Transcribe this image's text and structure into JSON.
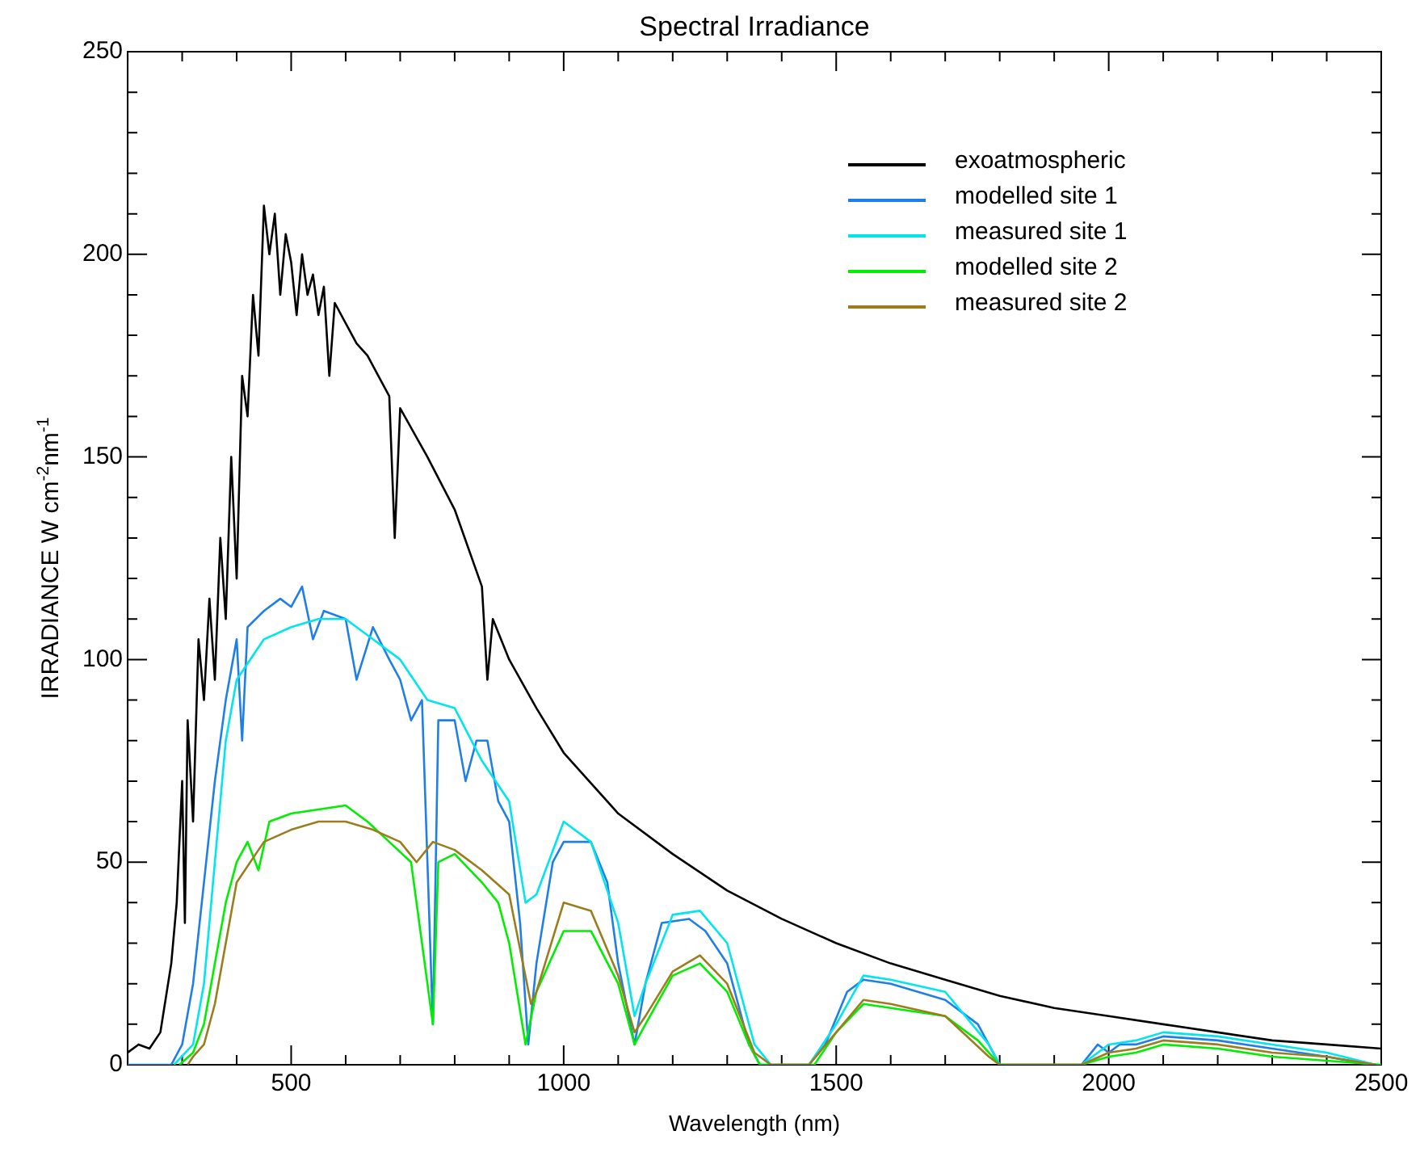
{
  "chart_data": {
    "type": "line",
    "title": "Spectral Irradiance",
    "xlabel": "Wavelength (nm)",
    "ylabel": "IRRADIANCE W cm$^{-2}$nm$^{-1}$",
    "xlim": [
      200,
      2500
    ],
    "ylim": [
      0,
      250
    ],
    "xticks": [
      {
        "value": 200,
        "label": null
      },
      {
        "value": 300,
        "label": null
      },
      {
        "value": 400,
        "label": null
      },
      500,
      {
        "value": 600,
        "label": null
      },
      {
        "value": 700,
        "label": null
      },
      {
        "value": 800,
        "label": null
      },
      {
        "value": 900,
        "label": null
      },
      1000,
      {
        "value": 1100,
        "label": null
      },
      {
        "value": 1200,
        "label": null
      },
      {
        "value": 1300,
        "label": null
      },
      {
        "value": 1400,
        "label": null
      },
      1500,
      {
        "value": 1600,
        "label": null
      },
      {
        "value": 1700,
        "label": null
      },
      {
        "value": 1800,
        "label": null
      },
      {
        "value": 1900,
        "label": null
      },
      2000,
      {
        "value": 2100,
        "label": null
      },
      {
        "value": 2200,
        "label": null
      },
      {
        "value": 2300,
        "label": null
      },
      {
        "value": 2400,
        "label": null
      },
      2500
    ],
    "yticks": [
      0,
      {
        "value": 10,
        "label": null
      },
      {
        "value": 20,
        "label": null
      },
      {
        "value": 30,
        "label": null
      },
      {
        "value": 40,
        "label": null
      },
      50,
      {
        "value": 60,
        "label": null
      },
      {
        "value": 70,
        "label": null
      },
      {
        "value": 80,
        "label": null
      },
      {
        "value": 90,
        "label": null
      },
      100,
      {
        "value": 110,
        "label": null
      },
      {
        "value": 120,
        "label": null
      },
      {
        "value": 130,
        "label": null
      },
      {
        "value": 140,
        "label": null
      },
      150,
      {
        "value": 160,
        "label": null
      },
      {
        "value": 170,
        "label": null
      },
      {
        "value": 180,
        "label": null
      },
      {
        "value": 190,
        "label": null
      },
      200,
      {
        "value": 210,
        "label": null
      },
      {
        "value": 220,
        "label": null
      },
      {
        "value": 230,
        "label": null
      },
      {
        "value": 240,
        "label": null
      },
      250
    ],
    "grid": false,
    "legend": "top right",
    "marker": "none",
    "line_style": "solid",
    "series": [
      {
        "name": "exoatmospheric",
        "color": "#000000",
        "x": [
          200,
          220,
          240,
          260,
          280,
          290,
          300,
          305,
          310,
          320,
          330,
          340,
          350,
          360,
          370,
          380,
          390,
          400,
          410,
          420,
          430,
          440,
          450,
          460,
          470,
          480,
          490,
          500,
          510,
          520,
          530,
          540,
          550,
          560,
          570,
          580,
          600,
          620,
          640,
          660,
          680,
          690,
          700,
          750,
          800,
          850,
          860,
          870,
          900,
          950,
          1000,
          1100,
          1200,
          1300,
          1400,
          1500,
          1600,
          1700,
          1800,
          1900,
          2000,
          2100,
          2200,
          2300,
          2400,
          2500
        ],
        "values": [
          3,
          5,
          4,
          8,
          25,
          40,
          70,
          35,
          85,
          60,
          105,
          90,
          115,
          95,
          130,
          110,
          150,
          120,
          170,
          160,
          190,
          175,
          212,
          200,
          210,
          190,
          205,
          198,
          185,
          200,
          190,
          195,
          185,
          192,
          170,
          188,
          183,
          178,
          175,
          170,
          165,
          130,
          162,
          150,
          137,
          118,
          95,
          110,
          100,
          88,
          77,
          62,
          52,
          43,
          36,
          30,
          25,
          21,
          17,
          14,
          12,
          10,
          8,
          6,
          5,
          4
        ]
      },
      {
        "name": "modelled site 1",
        "color": "#1e7fe8",
        "x": [
          200,
          280,
          300,
          320,
          340,
          360,
          380,
          400,
          410,
          420,
          450,
          480,
          500,
          520,
          540,
          560,
          600,
          620,
          650,
          680,
          700,
          720,
          740,
          760,
          770,
          800,
          820,
          840,
          860,
          880,
          900,
          920,
          935,
          950,
          980,
          1000,
          1050,
          1080,
          1100,
          1130,
          1150,
          1180,
          1230,
          1260,
          1300,
          1340,
          1360,
          1450,
          1480,
          1520,
          1550,
          1600,
          1700,
          1760,
          1800,
          1950,
          1980,
          2000,
          2020,
          2050,
          2100,
          2200,
          2300,
          2400,
          2480
        ],
        "values": [
          0,
          0,
          5,
          20,
          45,
          70,
          90,
          105,
          80,
          108,
          112,
          115,
          113,
          118,
          105,
          112,
          110,
          95,
          108,
          100,
          95,
          85,
          90,
          10,
          85,
          85,
          70,
          80,
          80,
          65,
          60,
          35,
          5,
          25,
          50,
          55,
          55,
          45,
          25,
          5,
          20,
          35,
          36,
          33,
          25,
          5,
          0,
          0,
          5,
          18,
          21,
          20,
          16,
          10,
          0,
          0,
          5,
          3,
          5,
          5,
          7,
          6,
          4,
          2,
          0
        ]
      },
      {
        "name": "measured site 1",
        "color": "#00e5ee",
        "x": [
          285,
          320,
          340,
          360,
          380,
          400,
          450,
          500,
          550,
          600,
          650,
          700,
          750,
          800,
          850,
          900,
          930,
          950,
          1000,
          1050,
          1100,
          1130,
          1150,
          1200,
          1250,
          1300,
          1350,
          1380,
          1450,
          1500,
          1550,
          1600,
          1700,
          1780,
          1800,
          1950,
          2000,
          2050,
          2100,
          2200,
          2300,
          2400,
          2490
        ],
        "values": [
          0,
          5,
          20,
          50,
          80,
          95,
          105,
          108,
          110,
          110,
          105,
          100,
          90,
          88,
          75,
          65,
          40,
          42,
          60,
          55,
          35,
          12,
          20,
          37,
          38,
          30,
          5,
          0,
          0,
          10,
          22,
          21,
          18,
          5,
          0,
          0,
          5,
          6,
          8,
          7,
          5,
          3,
          0
        ]
      },
      {
        "name": "modelled site 2",
        "color": "#00ee00",
        "x": [
          295,
          320,
          340,
          360,
          380,
          400,
          420,
          440,
          460,
          500,
          550,
          600,
          640,
          680,
          720,
          760,
          770,
          800,
          850,
          880,
          900,
          930,
          950,
          1000,
          1050,
          1100,
          1130,
          1150,
          1200,
          1250,
          1300,
          1340,
          1360,
          1460,
          1500,
          1550,
          1600,
          1700,
          1760,
          1800,
          1950,
          2000,
          2050,
          2100,
          2200,
          2300,
          2400,
          2500
        ],
        "values": [
          0,
          3,
          10,
          25,
          40,
          50,
          55,
          48,
          60,
          62,
          63,
          64,
          60,
          55,
          50,
          10,
          50,
          52,
          45,
          40,
          30,
          5,
          18,
          33,
          33,
          20,
          5,
          10,
          22,
          25,
          18,
          5,
          0,
          0,
          8,
          15,
          14,
          12,
          6,
          0,
          0,
          2,
          3,
          5,
          4,
          2,
          1,
          0
        ]
      },
      {
        "name": "measured site 2",
        "color": "#9b7d1e",
        "x": [
          310,
          320,
          340,
          360,
          380,
          400,
          450,
          500,
          550,
          600,
          650,
          700,
          730,
          760,
          800,
          850,
          900,
          940,
          950,
          1000,
          1050,
          1100,
          1130,
          1150,
          1200,
          1250,
          1300,
          1350,
          1380,
          1450,
          1500,
          1550,
          1600,
          1700,
          1780,
          1800,
          1950,
          2000,
          2050,
          2100,
          2200,
          2300,
          2400,
          2490
        ],
        "values": [
          0,
          2,
          5,
          15,
          30,
          45,
          55,
          58,
          60,
          60,
          58,
          55,
          50,
          55,
          53,
          48,
          42,
          15,
          18,
          40,
          38,
          22,
          8,
          12,
          23,
          27,
          20,
          3,
          0,
          0,
          8,
          16,
          15,
          12,
          2,
          0,
          0,
          3,
          4,
          6,
          5,
          3,
          2,
          0
        ]
      }
    ]
  }
}
